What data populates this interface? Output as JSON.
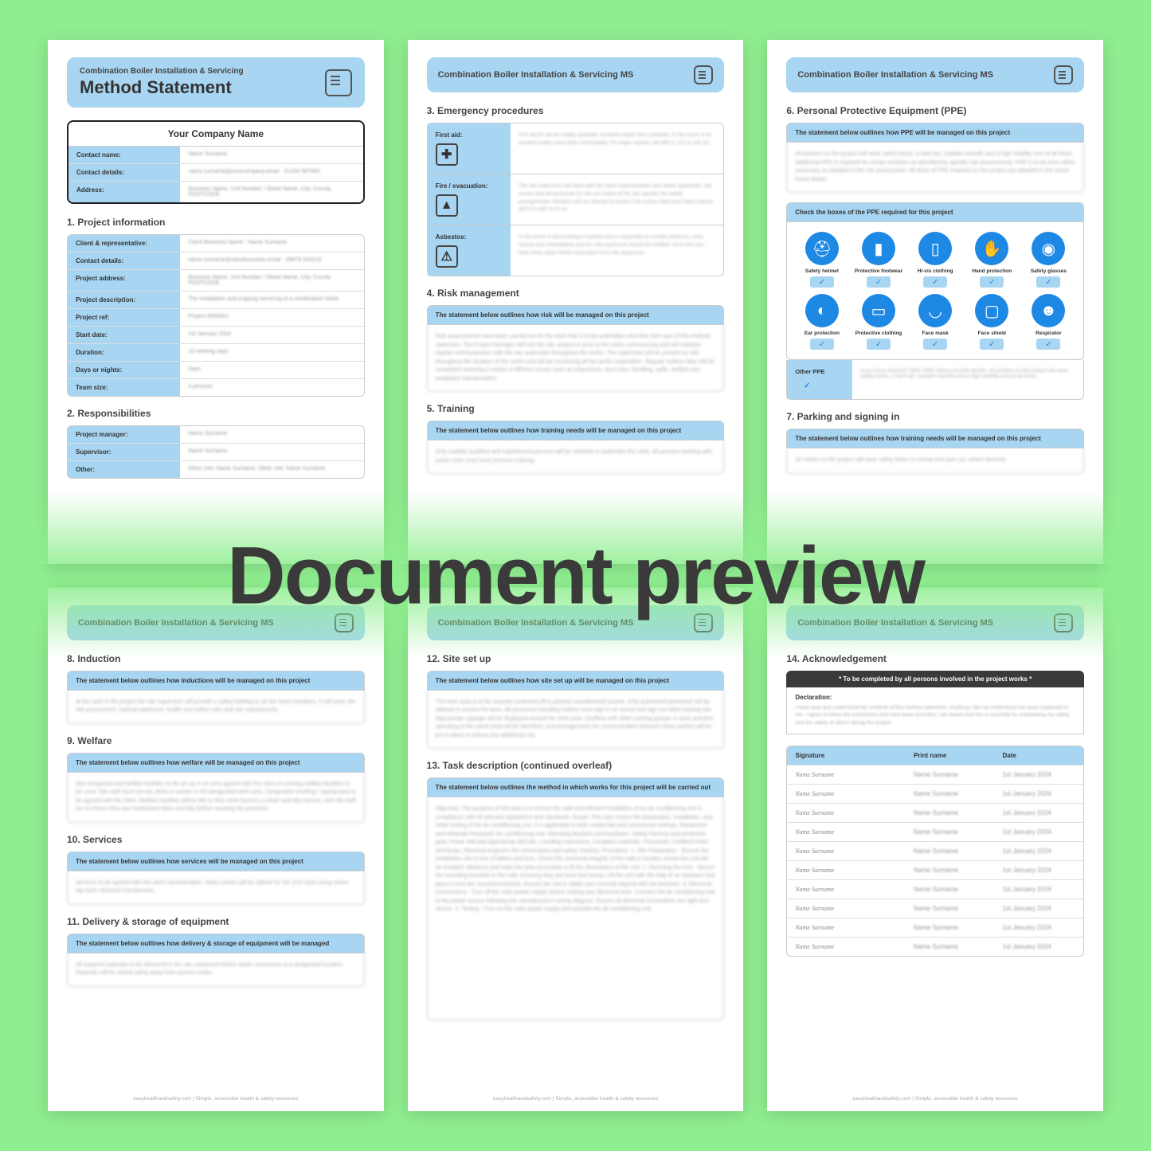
{
  "colors": {
    "background": "#8fee8f",
    "header_blue": "#a8d5f2",
    "ppe_blue": "#1e88e5",
    "text_dark": "#3a3a3a",
    "page_bg": "#ffffff"
  },
  "overlay": {
    "text": "Document preview",
    "fontsize": 102,
    "weight": 800
  },
  "doc_title": "Combination Boiler Installation & Servicing",
  "doc_title_ms": "Combination Boiler Installation & Servicing MS",
  "main_heading": "Method Statement",
  "company_heading": "Your Company Name",
  "contact_rows": [
    {
      "label": "Contact name:",
      "val": "Name Surname"
    },
    {
      "label": "Contact details:",
      "val": "name.surname@yourcompany.email · 01234 567890"
    },
    {
      "label": "Address:",
      "val": "Business Name, Unit Number / Street Name, City, County, POSTCODE"
    }
  ],
  "s1": {
    "title": "1. Project information",
    "rows": [
      {
        "label": "Client & representative:",
        "val": "Client Business Name · Name Surname"
      },
      {
        "label": "Contact details:",
        "val": "name.surname@clientbusiness.email · 09876 543210"
      },
      {
        "label": "Project address:",
        "val": "Business Name, Unit Number / Street Name, City, County, POSTCODE"
      },
      {
        "label": "Project description:",
        "val": "The installation and ongoing servicing of a combination boiler"
      },
      {
        "label": "Project ref:",
        "val": "Project #000001"
      },
      {
        "label": "Start date:",
        "val": "1st January 2024"
      },
      {
        "label": "Duration:",
        "val": "10 working days"
      },
      {
        "label": "Days or nights:",
        "val": "Days"
      },
      {
        "label": "Team size:",
        "val": "4 persons"
      }
    ]
  },
  "s2": {
    "title": "2. Responsibilities",
    "rows": [
      {
        "label": "Project manager:",
        "val": "Name Surname"
      },
      {
        "label": "Supervisor:",
        "val": "Name Surname"
      },
      {
        "label": "Other:",
        "val": "Other role: Name Surname, Other role: Name Surname"
      }
    ]
  },
  "s3": {
    "title": "3. Emergency procedures",
    "rows": [
      {
        "label": "First aid:",
        "icon": "✚",
        "body": "First aid kit will be readily available. Accident report form available. In the event of an accident notify a first aider immediately. For major injuries call 999 or 112 or call 111."
      },
      {
        "label": "Fire / evacuation:",
        "icon": "▲",
        "body": "The site supervisor will liaise with the client representative and where applicable, will ensure that all personnel on site are aware of the site specific fire safety arrangements. Workers will not attempt to tackle a fire unless they have been trained and it is safe to do so."
      },
      {
        "label": "Asbestos:",
        "icon": "⚠",
        "body": "In the event of discovering a material that is suspected to contain asbestos, work should stop immediately and the site supervisor should be notified. Once this has been done await further instruction from site supervisor."
      }
    ]
  },
  "s4": {
    "title": "4. Risk management",
    "stmt": "The statement below outlines how risk will be managed on this project",
    "body": "Risk assessments have been carried out for the work that is to be undertaken and they form part of this method statement. The Project Manager will visit the site sequence prior to the works commencing and will maintain regular communication with the site supervisor throughout the works. The supervisor will be present on site throughout the duration of the works and will be monitoring all the works undertaken. Regular toolbox talks will be completed covering a variety of different issues such as inspections, dust risks, handling, spills, welfare and workplace transportation."
  },
  "s5": {
    "title": "5. Training",
    "stmt": "The statement below outlines how training needs will be managed on this project",
    "body": "Only suitably qualified and experienced persons will be selected to undertake this work. All persons working with power tools must have previous training."
  },
  "s6": {
    "title": "6. Personal Protective Equipment (PPE)",
    "stmt": "The statement below outlines how PPE will be managed on this project",
    "body": "All workers on the project will wear safety boots, a hard hat, suitable overalls and a high visibility vest at all times. Additional PPE is required for certain activities as identified by specific risk assessments. PPE is to be worn when necessary as detailed in the risk assessment. All items of PPE required on this project are detailed in the check boxes below.",
    "check_label": "Check the boxes of the PPE required for this project",
    "items_row1": [
      {
        "label": "Safety helmet",
        "glyph": "⛑"
      },
      {
        "label": "Protective footwear",
        "glyph": "▮"
      },
      {
        "label": "Hi-vis clothing",
        "glyph": "▯"
      },
      {
        "label": "Hand protection",
        "glyph": "✋"
      },
      {
        "label": "Safety glasses",
        "glyph": "◉"
      }
    ],
    "items_row2": [
      {
        "label": "Ear protection",
        "glyph": "◐"
      },
      {
        "label": "Protective clothing",
        "glyph": "▭"
      },
      {
        "label": "Face mask",
        "glyph": "◡"
      },
      {
        "label": "Face shield",
        "glyph": "▢"
      },
      {
        "label": "Respirator",
        "glyph": "☻"
      }
    ],
    "other_label": "Other PPE",
    "other_body": "If you have checked 'Other PPE' please provide details. All workers on the project will wear safety boots, a hard hat, suitable overalls and a high visibility vest at all times."
  },
  "s7": {
    "title": "7. Parking and signing in",
    "stmt": "The statement below outlines how training needs will be managed on this project",
    "body": "All visitors to the project will wear safety boots on arrival and park car, where directed."
  },
  "s8": {
    "title": "8. Induction",
    "stmt": "The statement below outlines how inductions will be managed on this project",
    "body": "At the start of the project the site supervisor will provide a safety briefing to all site team members. It will cover the risk assessment, method statement, health and safety rules and site requirements."
  },
  "s9": {
    "title": "9. Welfare",
    "stmt": "The statement below outlines how welfare will be managed on this project",
    "body": "Site compound and welfare facilities to be set up in an area agreed with the client or existing welfare facilities to be used. Site staff must not eat, drink or smoke in the designated work area. Designated smoking / vaping area to be agreed with the client. Welfare facilities will be left as they were found in a clean and tidy manner, and site staff are to ensure they are maintained clean and tidy before vacating the premises."
  },
  "s10": {
    "title": "10. Services",
    "stmt": "The statement below outlines how services will be managed on this project",
    "body": "Services to be agreed with the client representative. Mains power will be utilised for the 110v tools using centre tap earth electrical transformers."
  },
  "s11": {
    "title": "11. Delivery & storage of equipment",
    "stmt": "The statement below outlines how delivery & storage of equipment will be managed",
    "body": "All required materials to be delivered to the site compound before works commence at a designated location. Materials will be stored safely away from access routes."
  },
  "s12": {
    "title": "12. Site set up",
    "stmt": "The statement below outlines how site set up will be managed on this project",
    "body": "The work area is to be securely cordoned off to prevent unauthorised access. Only authorised personnel will be allowed to access the area. All personnel including visitors must sign in on arrival and sign out when leaving site. Appropriate signage will be displayed around the work area. Conflicts with other existing groups or work activities operating in the same area will be identified, and arrangements for communication between these parties will be put in place to reduce any additional risk."
  },
  "s13": {
    "title": "13. Task description (continued overleaf)",
    "stmt": "The statement below outlines the method in which works for this project will be carried out",
    "body": "Objective: The purpose of this task is to ensure the safe and efficient installation of an air conditioning unit in compliance with all relevant regulations and standards. Scope: This task covers the preparation, installation, and initial testing of the air conditioning unit. It is applicable to both residential and commercial settings. Equipment and Materials Required: Air conditioning unit, Mounting brackets and hardware, Safety harness and protective gear, Power drill and appropriate drill bits, Levelling instrument, Insulation materials. Personnel: Certified HVAC technician, Electrical engineer (for connections and safety checks). Procedure: 1. Site Preparation - Ensure the installation site is free of debris and dust. Check the structural integrity of the wall or location where the unit will be installed. Measure and mark the area accurately to fit the dimensions of the unit. 2. Mounting the Unit - Secure the mounting brackets to the wall, ensuring they are level and sturdy. Lift the unit with the help of an assistant and place it onto the mounted brackets. Ensure the unit is stable and correctly aligned with the brackets. 3. Electrical Connections - Turn off the main power supply before making any electrical work. Connect the air conditioning unit to the power source following the manufacturer's wiring diagram. Ensure all electrical connections are tight and secure. 4. Testing - Turn on the main power supply and activate the air conditioning unit."
  },
  "s14": {
    "title": "14. Acknowledgement",
    "banner": "* To be completed by all persons involved in the project works *",
    "decl_h": "Declaration:",
    "decl_body": "I have read and understood the contents of this method statement. Anything I did not understand has been explained to me. I agree to follow the instructions that have been provided. I am aware that this is essential for maintaining my safety and the safety of others during the project.",
    "cols": [
      "Signature",
      "Print name",
      "Date"
    ],
    "rows": [
      {
        "sig": "Name Surname",
        "name": "Name Surname",
        "date": "1st January 2024"
      },
      {
        "sig": "Name Surname",
        "name": "Name Surname",
        "date": "1st January 2024"
      },
      {
        "sig": "Name Surname",
        "name": "Name Surname",
        "date": "1st January 2024"
      },
      {
        "sig": "Name Surname",
        "name": "Name Surname",
        "date": "1st January 2024"
      },
      {
        "sig": "Name Surname",
        "name": "Name Surname",
        "date": "1st January 2024"
      },
      {
        "sig": "Name Surname",
        "name": "Name Surname",
        "date": "1st January 2024"
      },
      {
        "sig": "Name Surname",
        "name": "Name Surname",
        "date": "1st January 2024"
      },
      {
        "sig": "Name Surname",
        "name": "Name Surname",
        "date": "1st January 2024"
      },
      {
        "sig": "Name Surname",
        "name": "Name Surname",
        "date": "1st January 2024"
      },
      {
        "sig": "Name Surname",
        "name": "Name Surname",
        "date": "1st January 2024"
      }
    ]
  },
  "footer": "easyhealthandsafety.com | Simple, accessible health & safety resources"
}
